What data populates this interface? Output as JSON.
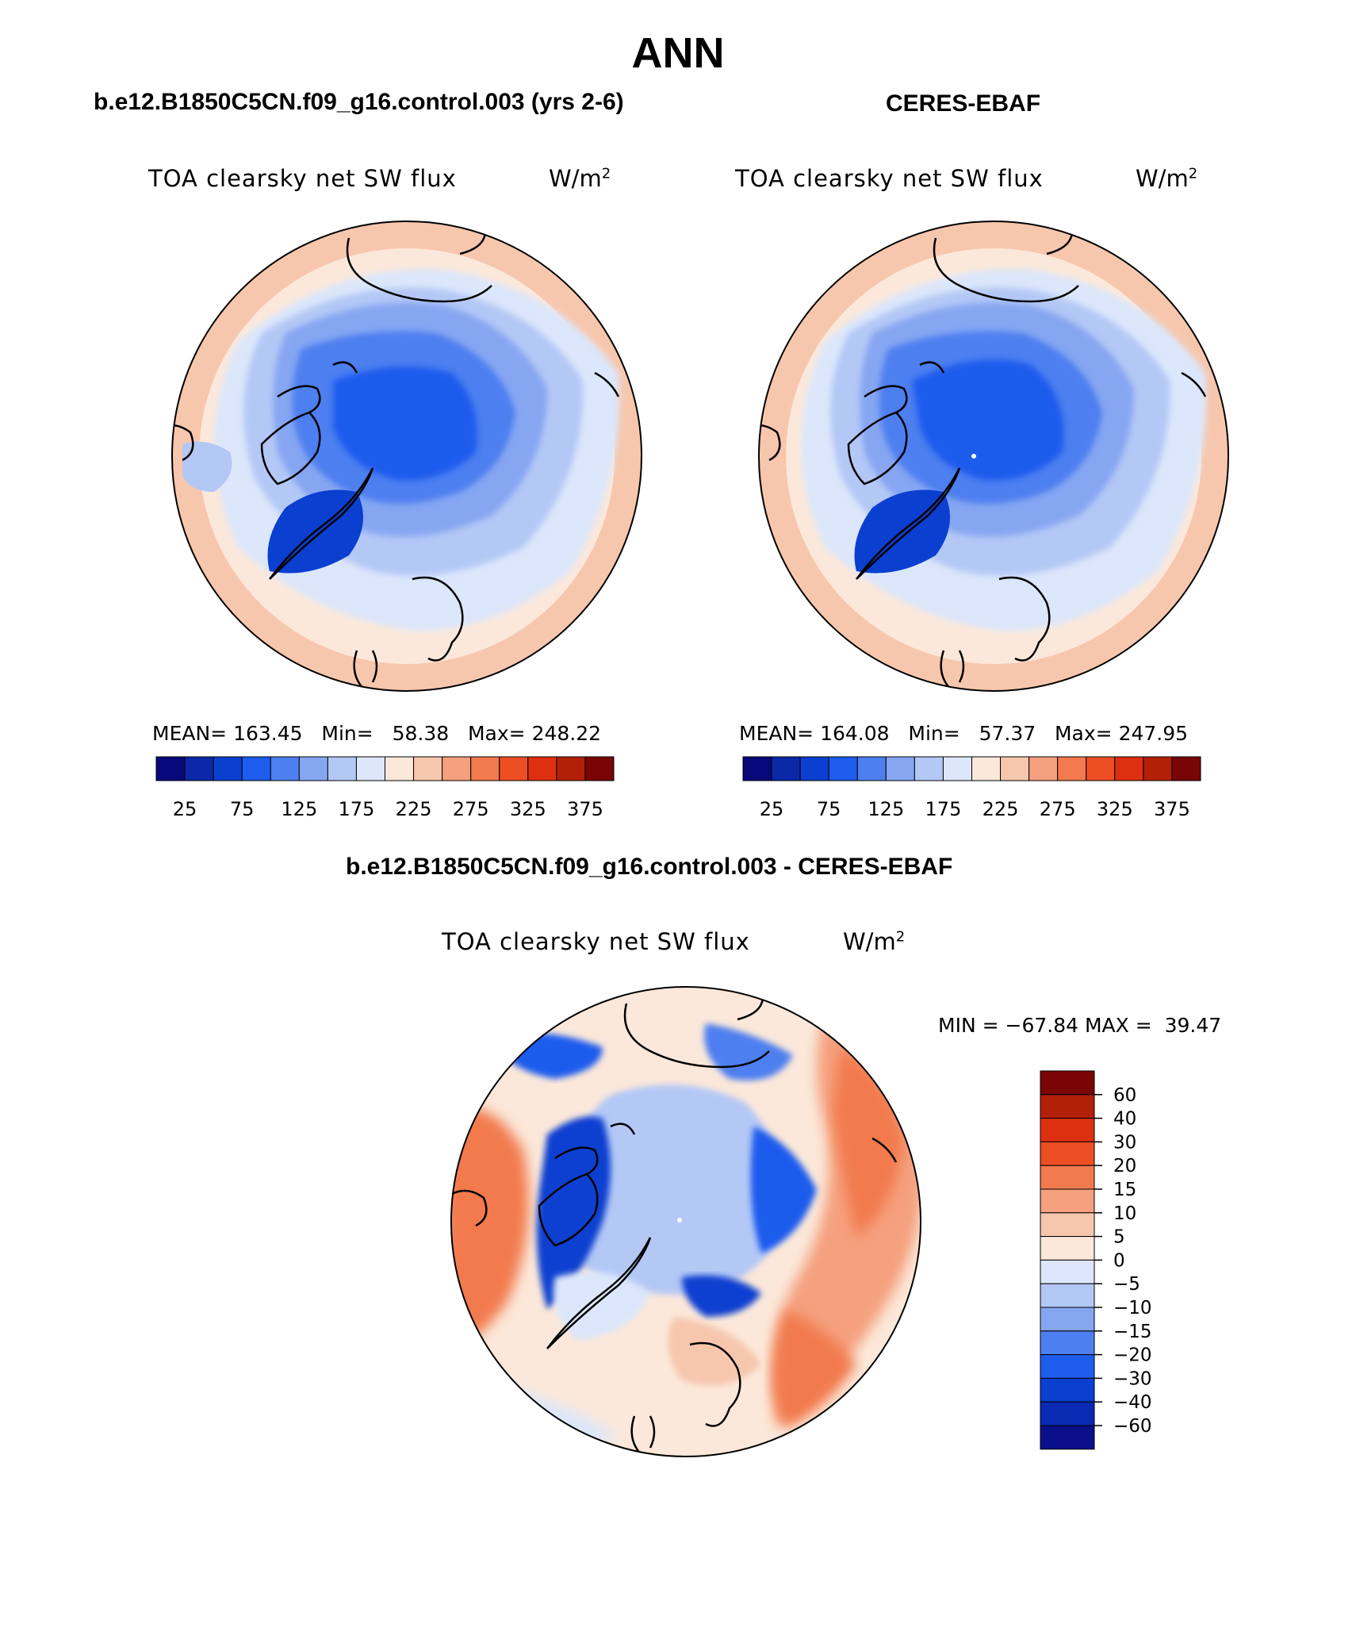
{
  "page": {
    "title": "ANN",
    "bottom_title": "b.e12.B1850C5CN.f09_g16.control.003 - CERES-EBAF"
  },
  "panels": [
    {
      "heading": "b.e12.B1850C5CN.f09_g16.control.003 (yrs 2-6)",
      "variable": "TOA clearsky net SW flux",
      "units": "W/m",
      "units_exp": "2",
      "stats": {
        "mean_label": "MEAN=",
        "mean": "163.45",
        "min_label": "Min=",
        "min": "58.38",
        "max_label": "Max=",
        "max": "248.22"
      }
    },
    {
      "heading": "CERES-EBAF",
      "variable": "TOA clearsky net SW flux",
      "units": "W/m",
      "units_exp": "2",
      "stats": {
        "mean_label": "MEAN=",
        "mean": "164.08",
        "min_label": "Min=",
        "min": "57.37",
        "max_label": "Max=",
        "max": "247.95"
      }
    }
  ],
  "diff_panel": {
    "variable": "TOA clearsky net SW flux",
    "units": "W/m",
    "units_exp": "2",
    "min_label": "MIN =",
    "min": "−67.84",
    "max_label": "MAX =",
    "max": "39.47"
  },
  "colorbars": {
    "top_colors": [
      "#08087a",
      "#0a28a8",
      "#0b3fd0",
      "#1d5ced",
      "#4d7ff0",
      "#86a6f2",
      "#b4c8f6",
      "#dce7fb",
      "#fce8da",
      "#f7c7ad",
      "#f5a07e",
      "#f27a4e",
      "#ee4e23",
      "#dd3010",
      "#b32008",
      "#7a0505"
    ],
    "top_labels": [
      "25",
      "75",
      "125",
      "175",
      "225",
      "275",
      "325",
      "375"
    ],
    "diff_colors": [
      "#0a0f8a",
      "#0a2ab4",
      "#0b3fd0",
      "#1d5ced",
      "#4d7ff0",
      "#86a6f2",
      "#b4c8f6",
      "#dce7fb",
      "#fce8da",
      "#f7c7ad",
      "#f5a07e",
      "#f27a4e",
      "#ee4e23",
      "#dd3010",
      "#b32008",
      "#7a0505"
    ],
    "diff_labels": [
      "60",
      "40",
      "30",
      "20",
      "15",
      "10",
      "5",
      "0",
      "−5",
      "−10",
      "−15",
      "−20",
      "−30",
      "−40",
      "−60"
    ]
  }
}
